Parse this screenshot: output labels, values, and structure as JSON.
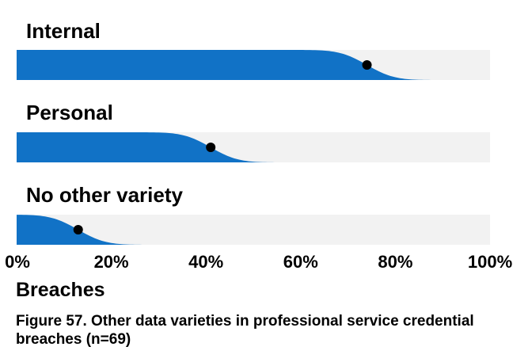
{
  "chart_data": {
    "type": "slab",
    "title": "",
    "xlabel": "Breaches",
    "ylabel": "",
    "xlim": [
      0,
      100
    ],
    "x_tick_labels": [
      "0%",
      "20%",
      "40%",
      "60%",
      "80%",
      "100%"
    ],
    "grid": false,
    "categories": [
      "Internal",
      "Personal",
      "No other variety"
    ],
    "values": [
      74,
      41,
      13
    ],
    "value_unit": "%",
    "colors": {
      "fill": "#1172c6",
      "track": "#f2f2f2",
      "marker": "#000000"
    }
  },
  "caption": "Figure 57. Other data varieties in professional service credential breaches (n=69)"
}
